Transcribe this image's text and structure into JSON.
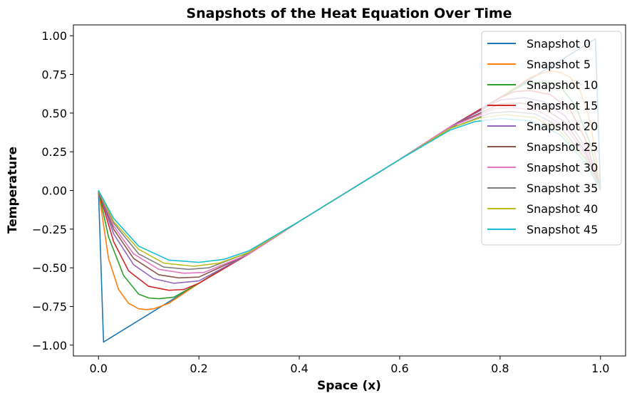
{
  "chart_data": {
    "type": "line",
    "title": "Snapshots of the Heat Equation Over Time",
    "xlabel": "Space (x)",
    "ylabel": "Temperature",
    "xlim": [
      -0.05,
      1.05
    ],
    "ylim": [
      -1.07,
      1.07
    ],
    "x_ticks": [
      0.0,
      0.2,
      0.4,
      0.6,
      0.8,
      1.0
    ],
    "x_tick_labels": [
      "0.0",
      "0.2",
      "0.4",
      "0.6",
      "0.8",
      "1.0"
    ],
    "y_ticks": [
      -1.0,
      -0.75,
      -0.5,
      -0.25,
      0.0,
      0.25,
      0.5,
      0.75,
      1.0
    ],
    "y_tick_labels": [
      "−1.00",
      "−0.75",
      "−0.50",
      "−0.25",
      "0.00",
      "0.25",
      "0.50",
      "0.75",
      "1.00"
    ],
    "grid": false,
    "legend_position": "top-right",
    "series": [
      {
        "name": "Snapshot 0",
        "color": "#1f77b4",
        "x": [
          0,
          0.01,
          0.2,
          0.4,
          0.5,
          0.6,
          0.8,
          0.99,
          1.0
        ],
        "y": [
          0,
          -0.98,
          -0.6,
          -0.2,
          0,
          0.2,
          0.6,
          0.98,
          0
        ]
      },
      {
        "name": "Snapshot 5",
        "color": "#ff7f0e",
        "x": [
          0,
          0.02,
          0.04,
          0.06,
          0.08,
          0.095,
          0.11,
          0.14,
          0.2,
          0.3,
          0.4,
          0.5,
          0.6,
          0.7,
          0.8,
          0.86,
          0.89,
          0.905,
          0.92,
          0.94,
          0.96,
          0.98,
          1.0
        ],
        "y": [
          0,
          -0.44,
          -0.64,
          -0.73,
          -0.765,
          -0.77,
          -0.765,
          -0.73,
          -0.6,
          -0.4,
          -0.2,
          0,
          0.2,
          0.4,
          0.6,
          0.73,
          0.765,
          0.77,
          0.765,
          0.73,
          0.64,
          0.44,
          0
        ]
      },
      {
        "name": "Snapshot 10",
        "color": "#2ca02c",
        "x": [
          0,
          0.02,
          0.05,
          0.08,
          0.1,
          0.12,
          0.15,
          0.2,
          0.3,
          0.4,
          0.5,
          0.6,
          0.7,
          0.8,
          0.85,
          0.88,
          0.9,
          0.92,
          0.95,
          0.98,
          1.0
        ],
        "y": [
          0,
          -0.3,
          -0.55,
          -0.67,
          -0.695,
          -0.7,
          -0.69,
          -0.6,
          -0.4,
          -0.2,
          0,
          0.2,
          0.4,
          0.6,
          0.69,
          0.7,
          0.695,
          0.67,
          0.55,
          0.3,
          0
        ]
      },
      {
        "name": "Snapshot 15",
        "color": "#d62728",
        "x": [
          0,
          0.03,
          0.06,
          0.1,
          0.14,
          0.17,
          0.2,
          0.3,
          0.4,
          0.5,
          0.6,
          0.7,
          0.8,
          0.83,
          0.86,
          0.9,
          0.94,
          0.97,
          1.0
        ],
        "y": [
          0,
          -0.33,
          -0.52,
          -0.62,
          -0.645,
          -0.64,
          -0.6,
          -0.41,
          -0.2,
          0,
          0.2,
          0.41,
          0.6,
          0.64,
          0.645,
          0.62,
          0.52,
          0.33,
          0
        ]
      },
      {
        "name": "Snapshot 20",
        "color": "#9467bd",
        "x": [
          0,
          0.03,
          0.07,
          0.11,
          0.15,
          0.2,
          0.3,
          0.4,
          0.5,
          0.6,
          0.7,
          0.8,
          0.85,
          0.89,
          0.93,
          0.97,
          1.0
        ],
        "y": [
          0,
          -0.28,
          -0.48,
          -0.57,
          -0.6,
          -0.585,
          -0.41,
          -0.2,
          0,
          0.2,
          0.41,
          0.585,
          0.6,
          0.57,
          0.48,
          0.28,
          0
        ]
      },
      {
        "name": "Snapshot 25",
        "color": "#8c564b",
        "x": [
          0,
          0.03,
          0.07,
          0.12,
          0.16,
          0.2,
          0.3,
          0.4,
          0.5,
          0.6,
          0.7,
          0.8,
          0.84,
          0.88,
          0.93,
          0.97,
          1.0
        ],
        "y": [
          0,
          -0.25,
          -0.44,
          -0.545,
          -0.565,
          -0.56,
          -0.41,
          -0.2,
          0,
          0.2,
          0.41,
          0.56,
          0.565,
          0.545,
          0.44,
          0.25,
          0
        ]
      },
      {
        "name": "Snapshot 30",
        "color": "#e377c2",
        "x": [
          0,
          0.03,
          0.07,
          0.12,
          0.17,
          0.21,
          0.3,
          0.4,
          0.5,
          0.6,
          0.7,
          0.79,
          0.83,
          0.88,
          0.93,
          0.97,
          1.0
        ],
        "y": [
          0,
          -0.23,
          -0.41,
          -0.51,
          -0.535,
          -0.53,
          -0.41,
          -0.2,
          0,
          0.2,
          0.41,
          0.53,
          0.535,
          0.51,
          0.41,
          0.23,
          0
        ]
      },
      {
        "name": "Snapshot 35",
        "color": "#7f7f7f",
        "x": [
          0,
          0.03,
          0.08,
          0.13,
          0.18,
          0.22,
          0.3,
          0.4,
          0.5,
          0.6,
          0.7,
          0.78,
          0.82,
          0.87,
          0.92,
          0.97,
          1.0
        ],
        "y": [
          0,
          -0.21,
          -0.41,
          -0.495,
          -0.51,
          -0.5,
          -0.4,
          -0.2,
          0,
          0.2,
          0.4,
          0.5,
          0.51,
          0.495,
          0.41,
          0.21,
          0
        ]
      },
      {
        "name": "Snapshot 40",
        "color": "#bcbd22",
        "x": [
          0,
          0.03,
          0.08,
          0.13,
          0.19,
          0.24,
          0.3,
          0.4,
          0.5,
          0.6,
          0.7,
          0.76,
          0.81,
          0.87,
          0.92,
          0.97,
          1.0
        ],
        "y": [
          0,
          -0.2,
          -0.38,
          -0.47,
          -0.49,
          -0.47,
          -0.4,
          -0.2,
          0,
          0.2,
          0.4,
          0.47,
          0.49,
          0.47,
          0.38,
          0.2,
          0
        ]
      },
      {
        "name": "Snapshot 45",
        "color": "#17becf",
        "x": [
          0,
          0.03,
          0.08,
          0.14,
          0.2,
          0.25,
          0.3,
          0.4,
          0.5,
          0.6,
          0.7,
          0.75,
          0.8,
          0.86,
          0.92,
          0.97,
          1.0
        ],
        "y": [
          0,
          -0.18,
          -0.36,
          -0.45,
          -0.465,
          -0.445,
          -0.39,
          -0.2,
          0,
          0.2,
          0.39,
          0.445,
          0.465,
          0.45,
          0.36,
          0.18,
          0
        ]
      }
    ]
  }
}
